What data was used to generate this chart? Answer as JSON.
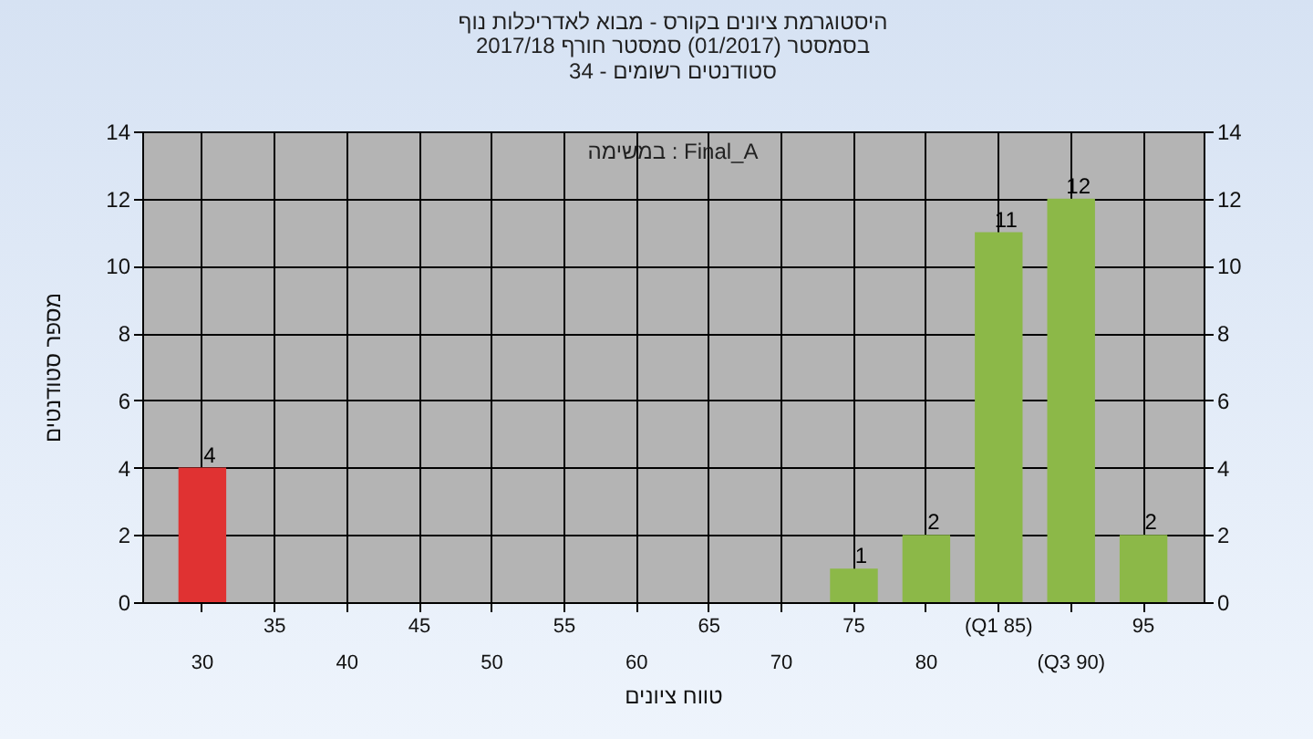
{
  "chart_data": {
    "type": "bar",
    "title": "היסטוגרמת ציונים בקורס - מבוא לאדריכלות נוף",
    "subtitle": "בסמסטר  (01/2017)  סמסטר חורף 2017/18\nסטודנטים רשומים - 34",
    "xlabel": "טווח ציונים",
    "ylabel": "מספר סטודנטים",
    "annotations": [
      "במשימה : Final_A"
    ],
    "categories": [
      "30",
      "35",
      "40",
      "45",
      "50",
      "55",
      "60",
      "65",
      "70",
      "75",
      "80",
      "(Q1 85)",
      "(Q3 90)",
      "95"
    ],
    "values": [
      4,
      null,
      null,
      null,
      null,
      null,
      null,
      null,
      null,
      1,
      2,
      11,
      12,
      2
    ],
    "colors": [
      "#e03232",
      "#8cb848",
      "#8cb848",
      "#8cb848",
      "#8cb848",
      "#8cb848",
      "#8cb848",
      "#8cb848",
      "#8cb848",
      "#8cb848",
      "#8cb848",
      "#8cb848",
      "#8cb848",
      "#8cb848"
    ],
    "ylim": [
      0,
      14
    ],
    "yticks": [
      0,
      2,
      4,
      6,
      8,
      10,
      12,
      14
    ],
    "y2lim": [
      0,
      14
    ],
    "y2ticks": [
      0,
      2,
      4,
      6,
      8,
      10,
      12,
      14
    ],
    "grid": true,
    "data_labels": true
  }
}
